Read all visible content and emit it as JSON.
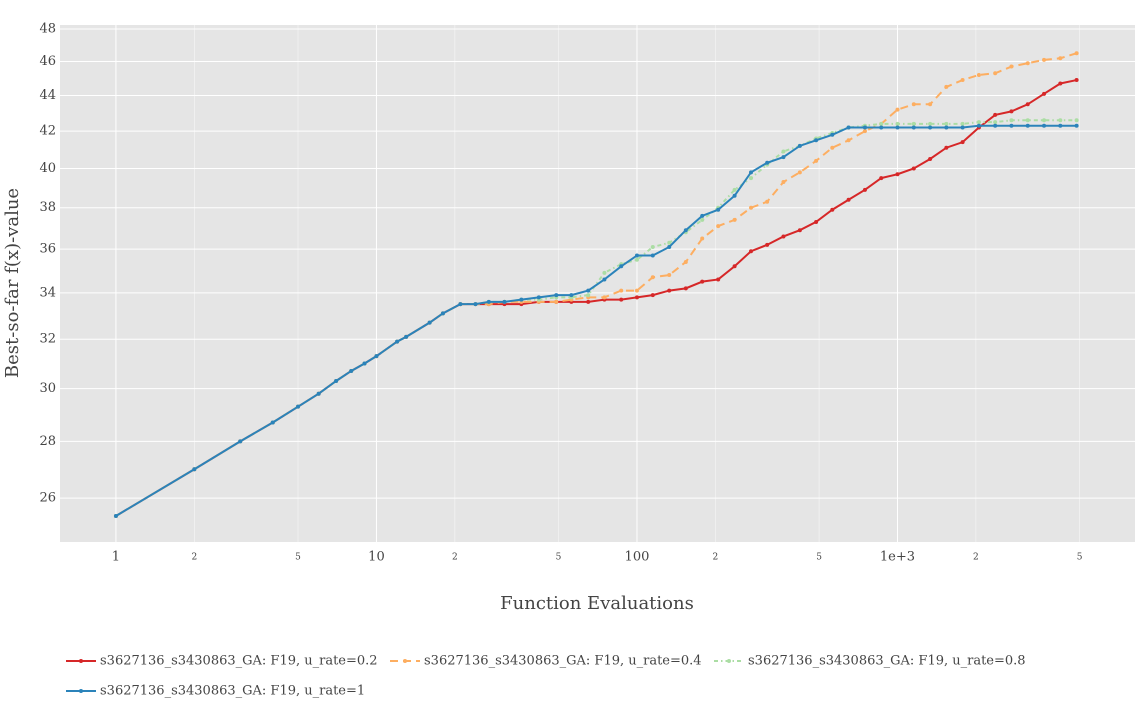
{
  "chart_data": {
    "type": "line",
    "x_label": "Function Evaluations",
    "y_label": "Best-so-far f(x)-value",
    "xscale": "log",
    "yscale": "log",
    "grid": true,
    "legend": "bottom",
    "x": [
      1,
      2,
      3,
      4,
      5,
      6,
      7,
      8,
      9,
      10,
      12,
      13,
      16,
      18,
      21,
      24,
      27,
      31,
      36,
      42,
      49,
      56,
      65,
      75,
      87,
      100,
      115,
      133,
      154,
      178,
      205,
      237,
      274,
      316,
      365,
      422,
      487,
      562,
      649,
      750,
      866,
      1000,
      1155,
      1334,
      1540,
      1778,
      2054,
      2371,
      2738,
      3162,
      3652,
      4217,
      4870
    ],
    "xlim": [
      0.61,
      8160
    ],
    "xticks": [
      1,
      2,
      5,
      10,
      {
        "value": 20,
        "label": "2"
      },
      {
        "value": 50,
        "label": "5"
      },
      100,
      {
        "value": 200,
        "label": "2"
      },
      {
        "value": 500,
        "label": "5"
      },
      {
        "value": 1000,
        "label": "1e+3"
      },
      {
        "value": 2000,
        "label": "2"
      },
      {
        "value": 5000,
        "label": "5"
      }
    ],
    "ylim": [
      24.55,
      48.25
    ],
    "yticks": [
      26,
      28,
      30,
      32,
      34,
      36,
      38,
      40,
      42,
      44,
      46,
      48
    ],
    "series": [
      {
        "name": "s3627136_s3430863_GA: F19, u_rate=0.2",
        "color": "#d62728",
        "dash": "solid",
        "values": [
          25.4,
          27.0,
          28.0,
          28.7,
          29.3,
          29.8,
          30.3,
          30.7,
          31.0,
          31.3,
          31.9,
          32.1,
          32.7,
          33.1,
          33.5,
          33.5,
          33.5,
          33.5,
          33.5,
          33.6,
          33.6,
          33.6,
          33.6,
          33.7,
          33.7,
          33.8,
          33.9,
          34.1,
          34.2,
          34.5,
          34.6,
          35.2,
          35.9,
          36.2,
          36.6,
          36.9,
          37.3,
          37.9,
          38.4,
          38.9,
          39.5,
          39.7,
          40.0,
          40.5,
          41.1,
          41.4,
          42.2,
          42.9,
          43.1,
          43.5,
          44.1,
          44.7,
          44.9
        ]
      },
      {
        "name": "s3627136_s3430863_GA: F19, u_rate=0.4",
        "color": "#fdae61",
        "dash": "dash",
        "values": [
          25.4,
          27.0,
          28.0,
          28.7,
          29.3,
          29.8,
          30.3,
          30.7,
          31.0,
          31.3,
          31.9,
          32.1,
          32.7,
          33.1,
          33.5,
          33.5,
          33.5,
          33.6,
          33.6,
          33.6,
          33.6,
          33.7,
          33.8,
          33.8,
          34.1,
          34.1,
          34.7,
          34.8,
          35.4,
          36.5,
          37.1,
          37.4,
          38.0,
          38.3,
          39.3,
          39.8,
          40.4,
          41.1,
          41.5,
          42.0,
          42.4,
          43.2,
          43.5,
          43.5,
          44.5,
          44.9,
          45.2,
          45.3,
          45.7,
          45.9,
          46.1,
          46.2,
          46.5
        ]
      },
      {
        "name": "s3627136_s3430863_GA: F19, u_rate=0.8",
        "color": "#abdda4",
        "dash": "dashdot",
        "values": [
          25.4,
          27.0,
          28.0,
          28.7,
          29.3,
          29.8,
          30.3,
          30.7,
          31.0,
          31.3,
          31.9,
          32.1,
          32.7,
          33.1,
          33.5,
          33.5,
          33.6,
          33.6,
          33.7,
          33.7,
          33.8,
          33.8,
          33.9,
          34.9,
          35.3,
          35.5,
          36.1,
          36.3,
          36.8,
          37.4,
          38.0,
          38.9,
          39.5,
          40.2,
          40.9,
          41.2,
          41.6,
          41.9,
          42.2,
          42.3,
          42.4,
          42.4,
          42.4,
          42.4,
          42.4,
          42.4,
          42.5,
          42.5,
          42.6,
          42.6,
          42.6,
          42.6,
          42.6
        ]
      },
      {
        "name": "s3627136_s3430863_GA: F19, u_rate=1",
        "color": "#2b83ba",
        "dash": "solid",
        "values": [
          25.4,
          27.0,
          28.0,
          28.7,
          29.3,
          29.8,
          30.3,
          30.7,
          31.0,
          31.3,
          31.9,
          32.1,
          32.7,
          33.1,
          33.5,
          33.5,
          33.6,
          33.6,
          33.7,
          33.8,
          33.9,
          33.9,
          34.1,
          34.6,
          35.2,
          35.7,
          35.7,
          36.1,
          36.9,
          37.6,
          37.9,
          38.6,
          39.8,
          40.3,
          40.6,
          41.2,
          41.5,
          41.8,
          42.2,
          42.2,
          42.2,
          42.2,
          42.2,
          42.2,
          42.2,
          42.2,
          42.3,
          42.3,
          42.3,
          42.3,
          42.3,
          42.3,
          42.3
        ]
      }
    ]
  }
}
